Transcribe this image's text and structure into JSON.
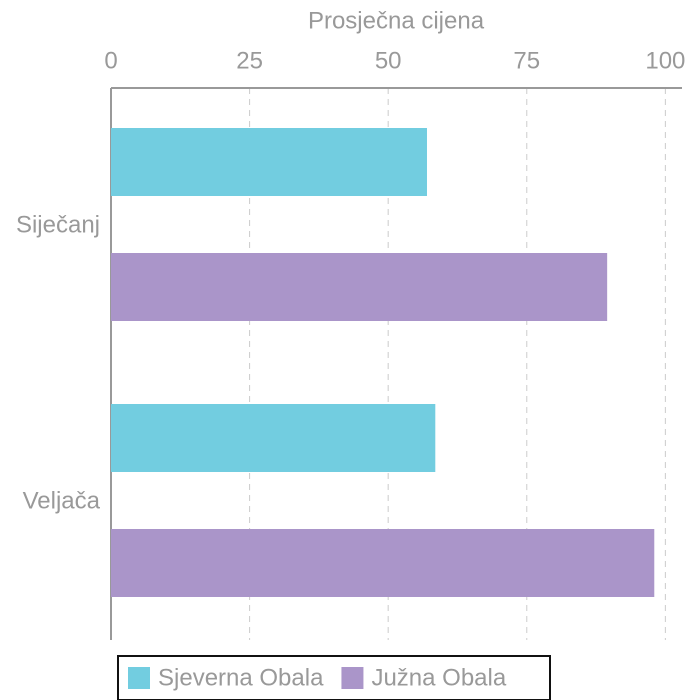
{
  "chart_data": {
    "type": "barh",
    "xlabel": "Prosječna cijena",
    "categories": [
      "Siječanj",
      "Veljača"
    ],
    "series": [
      {
        "name": "Sjeverna Obala",
        "color": "#72cde0",
        "values": [
          57,
          58.5
        ]
      },
      {
        "name": "Južna Obala",
        "color": "#aa95c9",
        "values": [
          89.5,
          98
        ]
      }
    ],
    "xlim": [
      0,
      103
    ],
    "xticks": [
      0,
      25,
      50,
      75,
      100
    ],
    "grid": true,
    "legend": "bottom"
  }
}
